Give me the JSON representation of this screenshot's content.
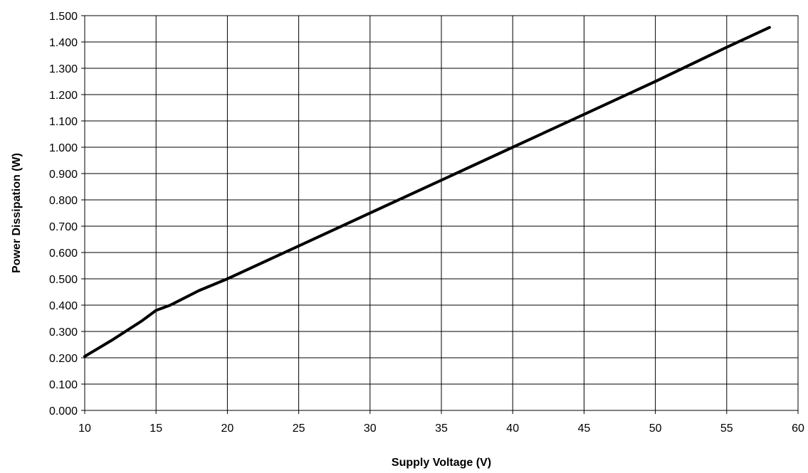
{
  "chart_data": {
    "type": "line",
    "title": "",
    "xlabel": "Supply Voltage  (V)",
    "ylabel": "Power Dissipation (W)",
    "xlim": [
      10,
      60
    ],
    "ylim": [
      0,
      1.5
    ],
    "x_ticks": [
      "10",
      "15",
      "20",
      "25",
      "30",
      "35",
      "40",
      "45",
      "50",
      "55",
      "60"
    ],
    "y_ticks": [
      "0.000",
      "0.100",
      "0.200",
      "0.300",
      "0.400",
      "0.500",
      "0.600",
      "0.700",
      "0.800",
      "0.900",
      "1.000",
      "1.100",
      "1.200",
      "1.300",
      "1.400",
      "1.500"
    ],
    "grid": true,
    "legend": "none",
    "line_color": "#000000",
    "series": [
      {
        "x": [
          10,
          12,
          14,
          15,
          16,
          18,
          20,
          25,
          30,
          35,
          40,
          45,
          50,
          55,
          58
        ],
        "y": [
          0.205,
          0.27,
          0.34,
          0.38,
          0.4,
          0.455,
          0.5,
          0.625,
          0.75,
          0.875,
          1.0,
          1.125,
          1.25,
          1.38,
          1.455
        ]
      }
    ]
  }
}
